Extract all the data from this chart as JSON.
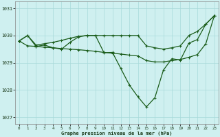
{
  "title": "Graphe pression niveau de la mer (hPa)",
  "background_color": "#cff0f0",
  "grid_color": "#a8dada",
  "line_color": "#1a5c1a",
  "xlim": [
    -0.5,
    23.5
  ],
  "ylim": [
    1026.75,
    1031.25
  ],
  "yticks": [
    1027,
    1028,
    1029,
    1030,
    1031
  ],
  "xticks": [
    0,
    1,
    2,
    3,
    4,
    5,
    6,
    7,
    8,
    9,
    10,
    11,
    12,
    13,
    14,
    15,
    16,
    17,
    18,
    19,
    20,
    21,
    22,
    23
  ],
  "series": {
    "main": [
      1029.8,
      1030.0,
      1029.6,
      1029.65,
      1029.55,
      1029.5,
      1029.75,
      1029.95,
      1030.0,
      1030.0,
      1029.37,
      1029.38,
      1028.78,
      1028.18,
      1027.75,
      1027.38,
      1027.72,
      1028.73,
      1029.15,
      1029.1,
      1029.72,
      1029.85,
      1030.42,
      1030.73
    ],
    "upper": [
      1029.8,
      1030.0,
      1029.65,
      1029.7,
      1029.75,
      1029.82,
      1029.9,
      1029.97,
      1030.0,
      1030.0,
      1030.0,
      1030.0,
      1030.0,
      1030.0,
      1030.0,
      1029.62,
      1029.55,
      1029.5,
      1029.55,
      1029.62,
      1030.0,
      1030.15,
      1030.42,
      1030.73
    ],
    "lower": [
      1029.8,
      1029.62,
      1029.6,
      1029.57,
      1029.55,
      1029.52,
      1029.5,
      1029.48,
      1029.45,
      1029.42,
      1029.38,
      1029.35,
      1029.32,
      1029.28,
      1029.25,
      1029.08,
      1029.03,
      1029.03,
      1029.08,
      1029.12,
      1029.2,
      1029.3,
      1029.7,
      1030.73
    ]
  }
}
